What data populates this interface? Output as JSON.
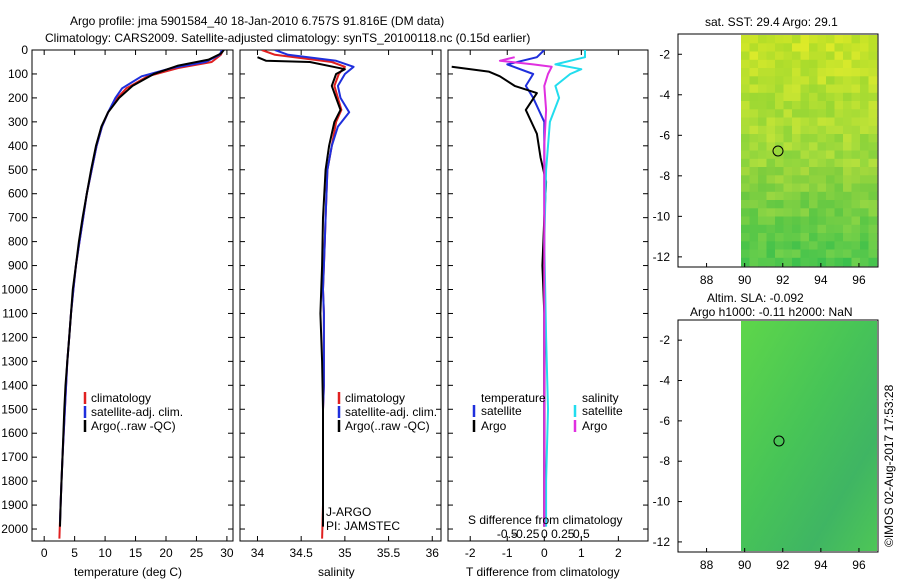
{
  "title": {
    "line1": "Argo profile: jma 5901584_40 18-Jan-2010 6.757S 91.816E (DM data)",
    "line2": "Climatology: CARS2009. Satellite-adjusted climatology: synTS_20100118.nc (0.15d earlier)"
  },
  "credit": "©IMOS 02-Aug-2017 17:53:28",
  "colors": {
    "climatology": "#e02020",
    "satellite": "#1f2fdc",
    "argo": "#000000",
    "salinity_sat": "#22ddee",
    "salinity_argo": "#e030e0"
  },
  "chart_data": [
    {
      "type": "line",
      "name": "temperature-profile",
      "xlabel": "temperature (deg C)",
      "xlim": [
        -2,
        31
      ],
      "ylim": [
        2050,
        0
      ],
      "xticks": [
        "0",
        "5",
        "10",
        "15",
        "20",
        "25",
        "30"
      ],
      "yticks": [
        "0",
        "100",
        "200",
        "300",
        "400",
        "500",
        "600",
        "700",
        "800",
        "900",
        "1000",
        "1100",
        "1200",
        "1300",
        "1400",
        "1500",
        "1600",
        "1700",
        "1800",
        "1900",
        "2000"
      ],
      "legend": [
        "climatology",
        "satellite-adj. clim.",
        "Argo(..raw -QC)"
      ],
      "series": [
        {
          "name": "climatology",
          "points": [
            [
              29.4,
              0
            ],
            [
              29,
              20
            ],
            [
              27.5,
              50
            ],
            [
              22,
              75
            ],
            [
              17,
              110
            ],
            [
              13.5,
              160
            ],
            [
              12,
              200
            ],
            [
              10.5,
              260
            ],
            [
              9.5,
              320
            ],
            [
              8.6,
              400
            ],
            [
              7.8,
              500
            ],
            [
              7,
              600
            ],
            [
              6.4,
              700
            ],
            [
              5.8,
              800
            ],
            [
              5.2,
              900
            ],
            [
              4.8,
              1000
            ],
            [
              4.4,
              1100
            ],
            [
              4.1,
              1200
            ],
            [
              3.8,
              1300
            ],
            [
              3.6,
              1400
            ],
            [
              3.4,
              1500
            ],
            [
              3.2,
              1600
            ],
            [
              3,
              1700
            ],
            [
              2.85,
              1800
            ],
            [
              2.7,
              1900
            ],
            [
              2.55,
              2000
            ],
            [
              2.5,
              2040
            ]
          ]
        },
        {
          "name": "satellite-adj. clim.",
          "points": [
            [
              29.2,
              0
            ],
            [
              28.8,
              20
            ],
            [
              26.5,
              50
            ],
            [
              21,
              75
            ],
            [
              16,
              110
            ],
            [
              12.8,
              160
            ],
            [
              11.7,
              200
            ],
            [
              10.5,
              260
            ],
            [
              9.5,
              320
            ],
            [
              8.6,
              400
            ],
            [
              7.8,
              500
            ],
            [
              7,
              600
            ],
            [
              6.4,
              700
            ],
            [
              5.8,
              800
            ],
            [
              5.2,
              900
            ],
            [
              4.8,
              1000
            ],
            [
              4.4,
              1100
            ],
            [
              4.1,
              1200
            ],
            [
              3.8,
              1300
            ],
            [
              3.6,
              1400
            ],
            [
              3.4,
              1500
            ],
            [
              3.2,
              1600
            ],
            [
              3,
              1700
            ],
            [
              2.85,
              1800
            ],
            [
              2.7,
              1900
            ],
            [
              2.6,
              1970
            ]
          ]
        },
        {
          "name": "Argo(..raw -QC)",
          "points": [
            [
              29.5,
              0
            ],
            [
              29,
              15
            ],
            [
              27,
              40
            ],
            [
              22,
              65
            ],
            [
              18,
              100
            ],
            [
              14.5,
              150
            ],
            [
              12.3,
              200
            ],
            [
              10.5,
              260
            ],
            [
              9.4,
              320
            ],
            [
              8.5,
              400
            ],
            [
              7.7,
              500
            ],
            [
              7,
              600
            ],
            [
              6.3,
              700
            ],
            [
              5.7,
              800
            ],
            [
              5.2,
              900
            ],
            [
              4.7,
              1000
            ],
            [
              4.4,
              1100
            ],
            [
              4.1,
              1200
            ],
            [
              3.8,
              1300
            ],
            [
              3.5,
              1400
            ],
            [
              3.3,
              1500
            ],
            [
              3.15,
              1600
            ],
            [
              3,
              1700
            ],
            [
              2.85,
              1800
            ],
            [
              2.7,
              1900
            ],
            [
              2.6,
              1990
            ]
          ]
        }
      ]
    },
    {
      "type": "line",
      "name": "salinity-profile",
      "xlabel": "salinity",
      "xlim": [
        33.8,
        36.1
      ],
      "ylim": [
        2050,
        0
      ],
      "xticks": [
        "34",
        "34.5",
        "35",
        "35.5",
        "36"
      ],
      "legend": [
        "climatology",
        "satellite-adj. clim.",
        "Argo(..raw -QC)"
      ],
      "annotation": [
        "J-ARGO",
        "PI: JAMSTEC"
      ],
      "series": [
        {
          "name": "climatology",
          "points": [
            [
              34.05,
              0
            ],
            [
              34.2,
              20
            ],
            [
              34.85,
              50
            ],
            [
              35.0,
              70
            ],
            [
              34.93,
              100
            ],
            [
              34.88,
              150
            ],
            [
              34.92,
              200
            ],
            [
              34.96,
              250
            ],
            [
              34.9,
              300
            ],
            [
              34.85,
              400
            ],
            [
              34.8,
              500
            ],
            [
              34.79,
              600
            ],
            [
              34.78,
              700
            ],
            [
              34.77,
              800
            ],
            [
              34.76,
              900
            ],
            [
              34.75,
              1000
            ],
            [
              34.76,
              1100
            ],
            [
              34.76,
              1200
            ],
            [
              34.76,
              1300
            ],
            [
              34.76,
              1400
            ],
            [
              34.75,
              1500
            ],
            [
              34.75,
              1700
            ],
            [
              34.75,
              1900
            ],
            [
              34.74,
              2040
            ]
          ]
        },
        {
          "name": "satellite-adj. clim.",
          "points": [
            [
              34.2,
              0
            ],
            [
              34.35,
              20
            ],
            [
              34.9,
              45
            ],
            [
              35.1,
              70
            ],
            [
              35.0,
              100
            ],
            [
              34.92,
              150
            ],
            [
              34.95,
              200
            ],
            [
              35.05,
              260
            ],
            [
              34.92,
              320
            ],
            [
              34.85,
              400
            ],
            [
              34.8,
              500
            ],
            [
              34.79,
              600
            ],
            [
              34.78,
              700
            ],
            [
              34.77,
              800
            ],
            [
              34.76,
              900
            ],
            [
              34.75,
              1000
            ],
            [
              34.76,
              1100
            ],
            [
              34.76,
              1200
            ],
            [
              34.76,
              1300
            ],
            [
              34.76,
              1400
            ],
            [
              34.75,
              1500
            ],
            [
              34.75,
              1700
            ],
            [
              34.75,
              1900
            ],
            [
              34.75,
              1970
            ]
          ]
        },
        {
          "name": "Argo(..raw -QC)",
          "points": [
            [
              34.0,
              30
            ],
            [
              34.1,
              45
            ],
            [
              34.6,
              50
            ],
            [
              35.0,
              80
            ],
            [
              34.9,
              100
            ],
            [
              34.85,
              150
            ],
            [
              34.9,
              200
            ],
            [
              34.95,
              250
            ],
            [
              34.88,
              300
            ],
            [
              34.82,
              400
            ],
            [
              34.78,
              500
            ],
            [
              34.75,
              700
            ],
            [
              34.74,
              900
            ],
            [
              34.72,
              1100
            ],
            [
              34.74,
              1300
            ],
            [
              34.75,
              1500
            ],
            [
              34.75,
              1700
            ],
            [
              34.75,
              1990
            ]
          ]
        }
      ]
    },
    {
      "type": "line",
      "name": "difference-profile",
      "xlabel": "T difference from climatology",
      "xlabel2": "S difference from climatology",
      "xlim": [
        -2.6,
        2.8
      ],
      "ylim": [
        2050,
        0
      ],
      "xticks": [
        "-2",
        "-1",
        "0",
        "1",
        "2"
      ],
      "xticks_s": [
        "-0.5",
        "-0.25",
        "0",
        "0.25",
        "0.5"
      ],
      "legend_temperature": [
        "temperature",
        "satellite",
        "Argo"
      ],
      "legend_salinity": [
        "salinity",
        "satellite",
        "Argo"
      ],
      "series": [
        {
          "name": "temperature satellite",
          "points": [
            [
              0,
              0
            ],
            [
              -0.2,
              30
            ],
            [
              -1.0,
              60
            ],
            [
              -0.3,
              100
            ],
            [
              -0.5,
              150
            ],
            [
              -0.3,
              200
            ],
            [
              0,
              300
            ],
            [
              0,
              500
            ],
            [
              0,
              1000
            ],
            [
              0,
              1500
            ],
            [
              0,
              1990
            ]
          ]
        },
        {
          "name": "temperature Argo",
          "points": [
            [
              -2.5,
              70
            ],
            [
              -1.5,
              90
            ],
            [
              -1.2,
              110
            ],
            [
              -0.8,
              150
            ],
            [
              -0.2,
              180
            ],
            [
              -0.5,
              250
            ],
            [
              -0.2,
              350
            ],
            [
              -0.1,
              450
            ],
            [
              0.05,
              550
            ],
            [
              0,
              700
            ],
            [
              -0.05,
              900
            ],
            [
              0,
              1100
            ],
            [
              0,
              1400
            ],
            [
              0,
              1700
            ],
            [
              0,
              1990
            ]
          ]
        },
        {
          "name": "salinity satellite",
          "points": [
            [
              1.1,
              0
            ],
            [
              1.1,
              30
            ],
            [
              0.3,
              60
            ],
            [
              1.0,
              80
            ],
            [
              0.7,
              100
            ],
            [
              0.3,
              150
            ],
            [
              0.4,
              200
            ],
            [
              0.15,
              300
            ],
            [
              0.05,
              500
            ],
            [
              0,
              800
            ],
            [
              0.05,
              1200
            ],
            [
              0.1,
              1500
            ],
            [
              0.05,
              1800
            ],
            [
              0.05,
              1990
            ]
          ]
        },
        {
          "name": "salinity Argo",
          "points": [
            [
              -0.8,
              30
            ],
            [
              -1.2,
              45
            ],
            [
              -0.3,
              60
            ],
            [
              0.2,
              70
            ],
            [
              0.1,
              100
            ],
            [
              0,
              150
            ],
            [
              0.05,
              250
            ],
            [
              0,
              400
            ],
            [
              0,
              700
            ],
            [
              0,
              1000
            ],
            [
              0,
              1300
            ],
            [
              0,
              1600
            ],
            [
              0,
              1990
            ]
          ]
        }
      ]
    },
    {
      "type": "heatmap",
      "name": "sst-map",
      "title": "sat. SST: 29.4 Argo: 29.1",
      "xlim": [
        86.5,
        97
      ],
      "ylim": [
        -12.5,
        -1
      ],
      "xticks": [
        "88",
        "90",
        "92",
        "94",
        "96"
      ],
      "yticks": [
        "-2",
        "-4",
        "-6",
        "-8",
        "-10",
        "-12"
      ],
      "data_extent_lon": [
        90,
        97
      ],
      "argo_position": [
        91.816,
        -6.757
      ]
    },
    {
      "type": "heatmap",
      "name": "sla-map",
      "title": "Altim. SLA: -0.092",
      "subtitle": "Argo h1000: -0.11 h2000: NaN",
      "xlim": [
        86.5,
        97
      ],
      "ylim": [
        -12.5,
        -1
      ],
      "xticks": [
        "88",
        "90",
        "92",
        "94",
        "96"
      ],
      "yticks": [
        "-2",
        "-4",
        "-6",
        "-8",
        "-10",
        "-12"
      ],
      "data_extent_lon": [
        90,
        97
      ],
      "argo_position": [
        91.816,
        -6.757
      ]
    }
  ]
}
